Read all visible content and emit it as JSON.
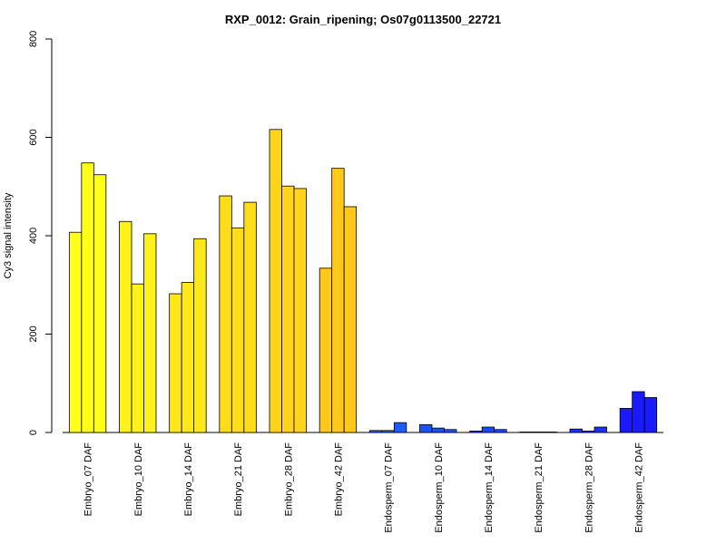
{
  "chart_data": {
    "type": "bar",
    "title": "RXP_0012: Grain_ripening; Os07g0113500_22721",
    "xlabel": "",
    "ylabel": "Cy3 signal intensity",
    "ylim": [
      0,
      800
    ],
    "yticks": [
      0,
      200,
      400,
      600,
      800
    ],
    "grid": false,
    "categories": [
      "Embryo_07 DAF",
      "Embryo_10 DAF",
      "Embryo_14 DAF",
      "Embryo_21 DAF",
      "Embryo_28 DAF",
      "Embryo_42 DAF",
      "Endosperm_07 DAF",
      "Endosperm_10 DAF",
      "Endosperm_14 DAF",
      "Endosperm_21 DAF",
      "Endosperm_28 DAF",
      "Endosperm_42 DAF"
    ],
    "group_colors": [
      "#FFFF1A",
      "#FFF21A",
      "#FFE81A",
      "#FFDD1A",
      "#FFD41A",
      "#FFC81A",
      "#1A5CFF",
      "#1A52FF",
      "#1A47FF",
      "#1A3CFF",
      "#1A30FF",
      "#1A1AFF"
    ],
    "replicates": [
      [
        407,
        548,
        524
      ],
      [
        429,
        302,
        404
      ],
      [
        282,
        305,
        394
      ],
      [
        481,
        416,
        468
      ],
      [
        616,
        501,
        496
      ],
      [
        334,
        537,
        459
      ],
      [
        4,
        4,
        20
      ],
      [
        16,
        9,
        6
      ],
      [
        3,
        11,
        6
      ],
      [
        1,
        1,
        1
      ],
      [
        7,
        3,
        11
      ],
      [
        49,
        83,
        71
      ]
    ]
  }
}
